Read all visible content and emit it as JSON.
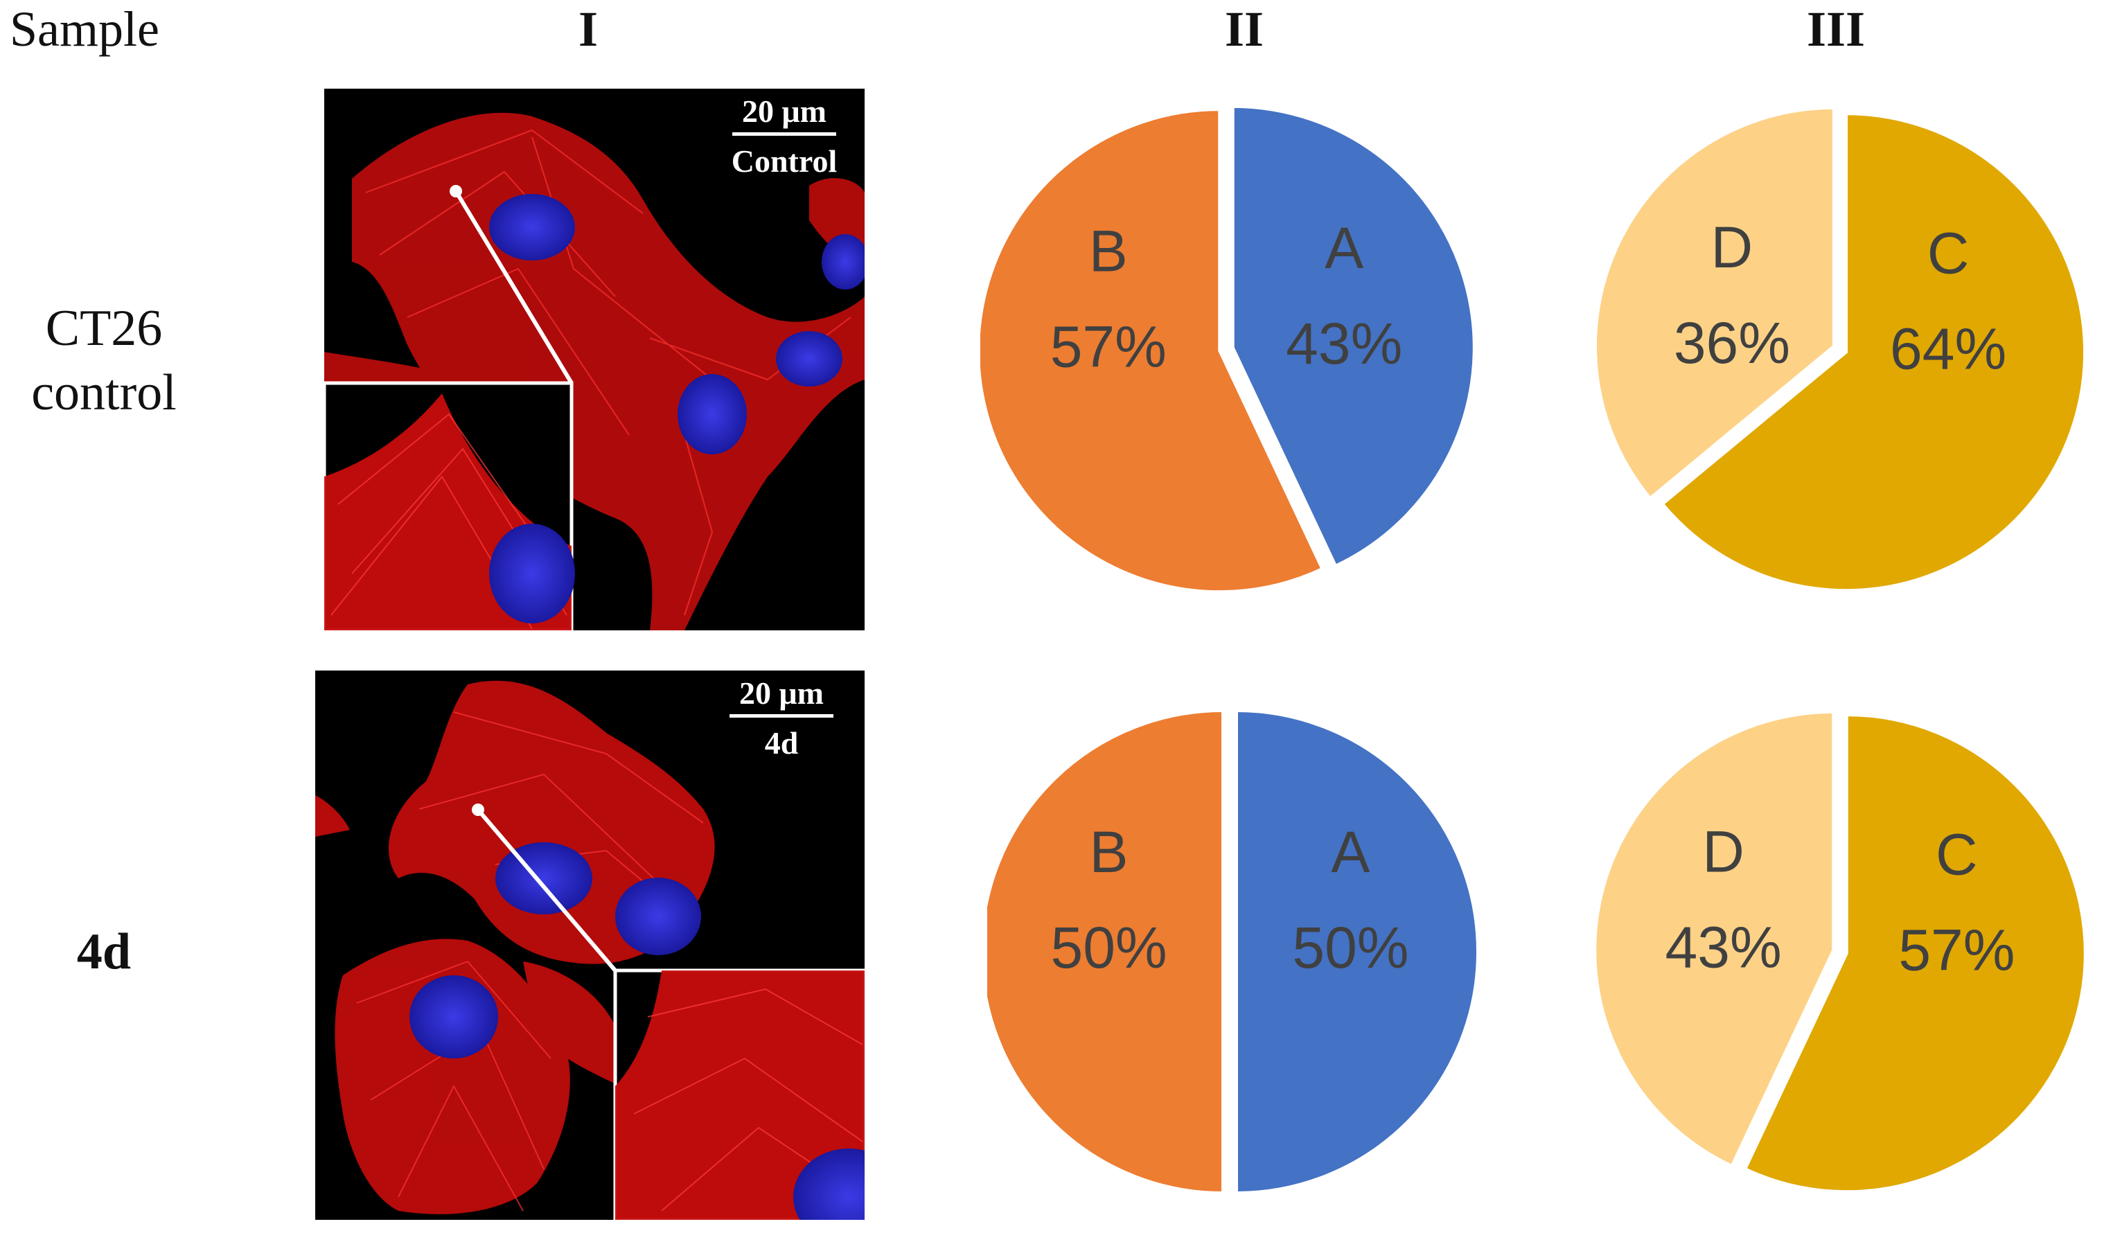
{
  "headers": {
    "sample": "Sample",
    "col1": "I",
    "col2": "II",
    "col3": "III"
  },
  "rows": [
    {
      "label_line1": "CT26",
      "label_line2": "control",
      "micro_scale": "20 μm",
      "micro_caption": "Control"
    },
    {
      "label_line1": "4d",
      "label_line2": "",
      "micro_scale": "20 μm",
      "micro_caption": "4d"
    }
  ],
  "colors": {
    "A": "#4472c4",
    "B": "#ed7d31",
    "C": "#e0a800",
    "D": "#fdd287",
    "label_text": "#404040",
    "actin": "#e01010",
    "nucleus": "#2a2ad0"
  },
  "chart_data": [
    {
      "type": "pie",
      "row": "CT26 control",
      "column": "II",
      "slices": [
        {
          "label": "A",
          "value": 43,
          "text": "43%"
        },
        {
          "label": "B",
          "value": 57,
          "text": "57%"
        }
      ]
    },
    {
      "type": "pie",
      "row": "CT26 control",
      "column": "III",
      "slices": [
        {
          "label": "C",
          "value": 64,
          "text": "64%"
        },
        {
          "label": "D",
          "value": 36,
          "text": "36%"
        }
      ]
    },
    {
      "type": "pie",
      "row": "4d",
      "column": "II",
      "slices": [
        {
          "label": "A",
          "value": 50,
          "text": "50%"
        },
        {
          "label": "B",
          "value": 50,
          "text": "50%"
        }
      ]
    },
    {
      "type": "pie",
      "row": "4d",
      "column": "III",
      "slices": [
        {
          "label": "C",
          "value": 57,
          "text": "57%"
        },
        {
          "label": "D",
          "value": 43,
          "text": "43%"
        }
      ]
    }
  ]
}
